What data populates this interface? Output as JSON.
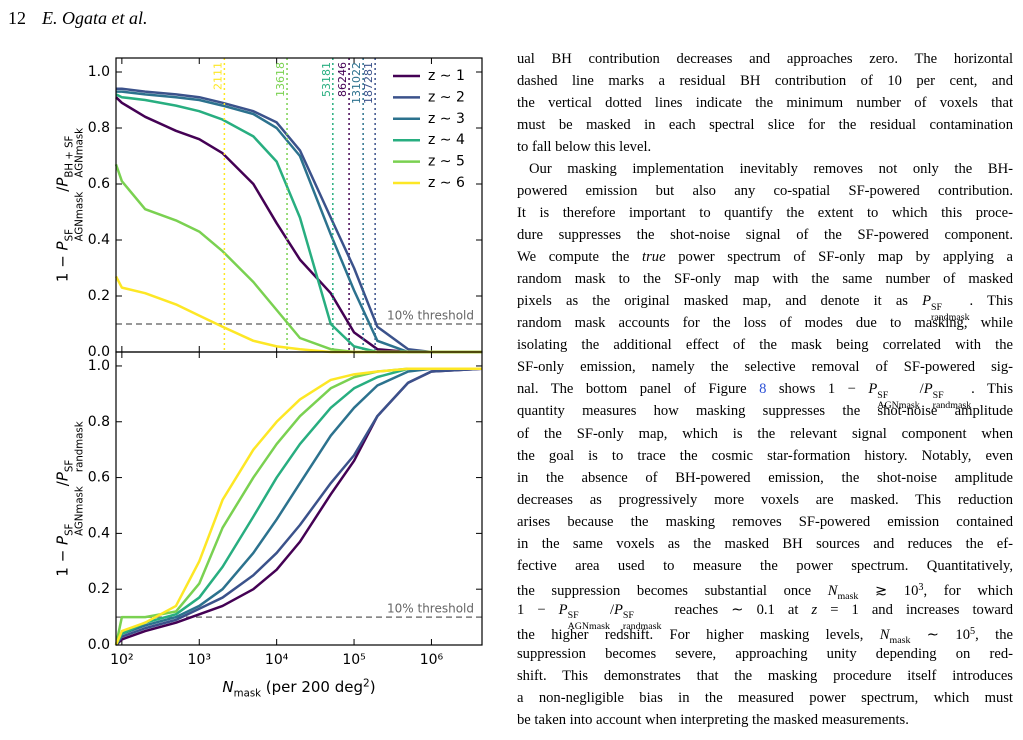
{
  "header": {
    "page": "12",
    "authors": "E. Ogata et al."
  },
  "chart_data": [
    {
      "type": "line",
      "log_x": true,
      "ylabel": [
        "1 − ",
        {
          "text": "P",
          "style": "i",
          "sup": "SF",
          "sub": "AGNmask"
        },
        "/",
        {
          "text": "P",
          "style": "i",
          "sup": "BH + SF",
          "sub": "AGNmask"
        }
      ],
      "x": [
        84,
        100,
        200,
        500,
        1000,
        2000,
        5000,
        10000,
        20000,
        50000,
        100000,
        200000,
        500000,
        1000000,
        4500000
      ],
      "xlim": [
        84,
        4500000
      ],
      "ylim": [
        0,
        1.05
      ],
      "xticks": [
        100,
        1000,
        10000,
        100000,
        1000000
      ],
      "yticks": [
        {
          "value": 0,
          "label": "0.0"
        },
        0.2,
        0.4,
        0.6,
        0.8,
        {
          "value": 1,
          "label": "1.0"
        }
      ],
      "hline": 0.1,
      "hline_label": "10% threshold",
      "series": [
        {
          "name": "z ∼ 1",
          "color": "#440154",
          "threshold": 86246,
          "values": [
            0.91,
            0.89,
            0.84,
            0.79,
            0.76,
            0.71,
            0.6,
            0.46,
            0.33,
            0.21,
            0.07,
            0.01,
            0,
            0,
            0
          ]
        },
        {
          "name": "z ∼ 2",
          "color": "#3b528b",
          "threshold": 187281,
          "values": [
            0.94,
            0.94,
            0.93,
            0.92,
            0.91,
            0.89,
            0.86,
            0.82,
            0.72,
            0.48,
            0.3,
            0.09,
            0.01,
            0,
            0
          ]
        },
        {
          "name": "z ∼ 3",
          "color": "#2c728e",
          "threshold": 131022,
          "values": [
            0.93,
            0.93,
            0.92,
            0.91,
            0.9,
            0.88,
            0.85,
            0.8,
            0.7,
            0.42,
            0.22,
            0.04,
            0,
            0,
            0
          ]
        },
        {
          "name": "z ∼ 4",
          "color": "#28ae80",
          "threshold": 53181,
          "values": [
            0.92,
            0.91,
            0.9,
            0.88,
            0.86,
            0.83,
            0.77,
            0.68,
            0.48,
            0.1,
            0.02,
            0,
            0,
            0,
            0
          ]
        },
        {
          "name": "z ∼ 5",
          "color": "#7ad151",
          "threshold": 13618,
          "values": [
            0.67,
            0.61,
            0.51,
            0.47,
            0.43,
            0.36,
            0.25,
            0.15,
            0.05,
            0.01,
            0,
            0,
            0,
            0,
            0
          ]
        },
        {
          "name": "z ∼ 6",
          "color": "#fde725",
          "threshold": 2111,
          "values": [
            0.27,
            0.23,
            0.21,
            0.17,
            0.13,
            0.09,
            0.04,
            0.02,
            0.01,
            0,
            0,
            0,
            0,
            0,
            0
          ]
        }
      ]
    },
    {
      "type": "line",
      "log_x": true,
      "ylabel": [
        "1 − ",
        {
          "text": "P",
          "style": "i",
          "sup": "SF",
          "sub": "AGNmask"
        },
        "/",
        {
          "text": "P",
          "style": "i",
          "sup": "SF",
          "sub": "randmask"
        }
      ],
      "xlabel": [
        {
          "text": "N",
          "style": "i",
          "sub": "mask"
        },
        " (per 200 deg",
        {
          "text": "2",
          "style": "sup"
        },
        ")"
      ],
      "x": [
        84,
        100,
        200,
        500,
        1000,
        2000,
        5000,
        10000,
        20000,
        50000,
        100000,
        200000,
        500000,
        1000000,
        4500000
      ],
      "xlim": [
        84,
        4500000
      ],
      "ylim": [
        0,
        1.05
      ],
      "xticks": [
        {
          "value": 100,
          "label": "10²"
        },
        {
          "value": 1000,
          "label": "10³"
        },
        {
          "value": 10000,
          "label": "10⁴"
        },
        {
          "value": 100000,
          "label": "10⁵"
        },
        {
          "value": 1000000,
          "label": "10⁶"
        }
      ],
      "yticks": [
        {
          "value": 0,
          "label": "0.0"
        },
        0.2,
        0.4,
        0.6,
        0.8,
        {
          "value": 1,
          "label": "1.0"
        }
      ],
      "hline": 0.1,
      "hline_label": "10% threshold",
      "series": [
        {
          "color": "#440154",
          "values": [
            0,
            0.02,
            0.05,
            0.08,
            0.11,
            0.14,
            0.2,
            0.27,
            0.37,
            0.54,
            0.66,
            0.82,
            0.94,
            0.98,
            0.99
          ]
        },
        {
          "color": "#3b528b",
          "values": [
            0,
            0.03,
            0.06,
            0.09,
            0.13,
            0.17,
            0.25,
            0.33,
            0.43,
            0.58,
            0.68,
            0.82,
            0.94,
            0.98,
            0.99
          ]
        },
        {
          "color": "#2c728e",
          "values": [
            0,
            0.04,
            0.07,
            0.1,
            0.14,
            0.2,
            0.33,
            0.45,
            0.58,
            0.75,
            0.85,
            0.93,
            0.98,
            0.99,
            0.99
          ]
        },
        {
          "color": "#28ae80",
          "values": [
            0,
            0.04,
            0.08,
            0.11,
            0.17,
            0.28,
            0.46,
            0.6,
            0.72,
            0.85,
            0.92,
            0.96,
            0.99,
            0.99,
            0.99
          ]
        },
        {
          "color": "#7ad151",
          "values": [
            0,
            0.1,
            0.1,
            0.12,
            0.22,
            0.42,
            0.6,
            0.72,
            0.82,
            0.92,
            0.96,
            0.98,
            0.99,
            0.99,
            0.99
          ]
        },
        {
          "color": "#fde725",
          "values": [
            0,
            0.05,
            0.08,
            0.14,
            0.3,
            0.52,
            0.7,
            0.8,
            0.88,
            0.95,
            0.97,
            0.98,
            0.99,
            0.99,
            0.99
          ]
        }
      ]
    }
  ],
  "text": {
    "paragraphs": [
      [
        "ual BH contribution decreases and approaches zero. The horizontal",
        "dashed line marks a residual BH contribution of 10 per cent, and",
        "the vertical dotted lines indicate the minimum number of voxels that",
        "must be masked in each spectral slice for the residual contamination",
        "to fall below this level."
      ],
      [
        "Our masking implementation inevitably removes not only the BH-",
        "powered emission but also any co-spatial SF-powered contribution.",
        "It is therefore important to quantify the extent to which this proce-",
        "dure suppresses the shot-noise signal of the SF-powered component.",
        [
          "We compute the ",
          {
            "text": "true",
            "style": "i"
          },
          " power spectrum of SF-only map by applying a"
        ],
        "random mask to the SF-only map with the same number of masked",
        [
          "pixels as the original masked map, and denote it as ",
          {
            "text": "P",
            "style": "i",
            "sup": "SF",
            "sub": "randmask"
          },
          ". This"
        ],
        "random mask accounts for the loss of modes due to masking, while",
        "isolating the additional effect of the mask being correlated with the",
        "SF-only emission, namely the selective removal of SF-powered sig-",
        [
          "nal. The bottom panel of Figure ",
          {
            "text": "8",
            "style": "link"
          },
          " shows 1 − ",
          {
            "text": "P",
            "style": "i",
            "sup": "SF",
            "sub": "AGNmask"
          },
          "/",
          {
            "text": "P",
            "style": "i",
            "sup": "SF",
            "sub": "randmask"
          },
          ". This"
        ],
        "quantity measures how masking suppresses the shot-noise amplitude",
        "of the SF-only map, which is the relevant signal component when",
        "the goal is to trace the cosmic star-formation history. Notably, even",
        "in the absence of BH-powered emission, the shot-noise amplitude",
        "decreases as progressively more voxels are masked. This reduction",
        "arises because the masking removes SF-powered emission contained",
        "in the same voxels as the masked BH sources and reduces the ef-",
        "fective area used to measure the power spectrum. Quantitatively,",
        [
          "the suppression becomes substantial once ",
          {
            "text": "N",
            "style": "i",
            "sub": "mask"
          },
          " ≳ 10",
          {
            "text": "3",
            "style": "sup"
          },
          ", for which"
        ],
        [
          "1 − ",
          {
            "text": "P",
            "style": "i",
            "sup": "SF",
            "sub": "AGNmask"
          },
          "/",
          {
            "text": "P",
            "style": "i",
            "sup": "SF",
            "sub": "randmask"
          },
          " reaches ∼ 0.1 at ",
          {
            "text": "z",
            "style": "i"
          },
          " = 1 and increases toward"
        ],
        [
          "the higher redshift. For higher masking levels, ",
          {
            "text": "N",
            "style": "i",
            "sub": "mask"
          },
          " ∼ 10",
          {
            "text": "5",
            "style": "sup"
          },
          ", the"
        ],
        "suppression becomes severe, approaching unity depending on red-",
        "shift. This demonstrates that the masking procedure itself introduces",
        "a non-negligible bias in the measured power spectrum, which must",
        "be taken into account when interpreting the masked measurements."
      ]
    ]
  }
}
